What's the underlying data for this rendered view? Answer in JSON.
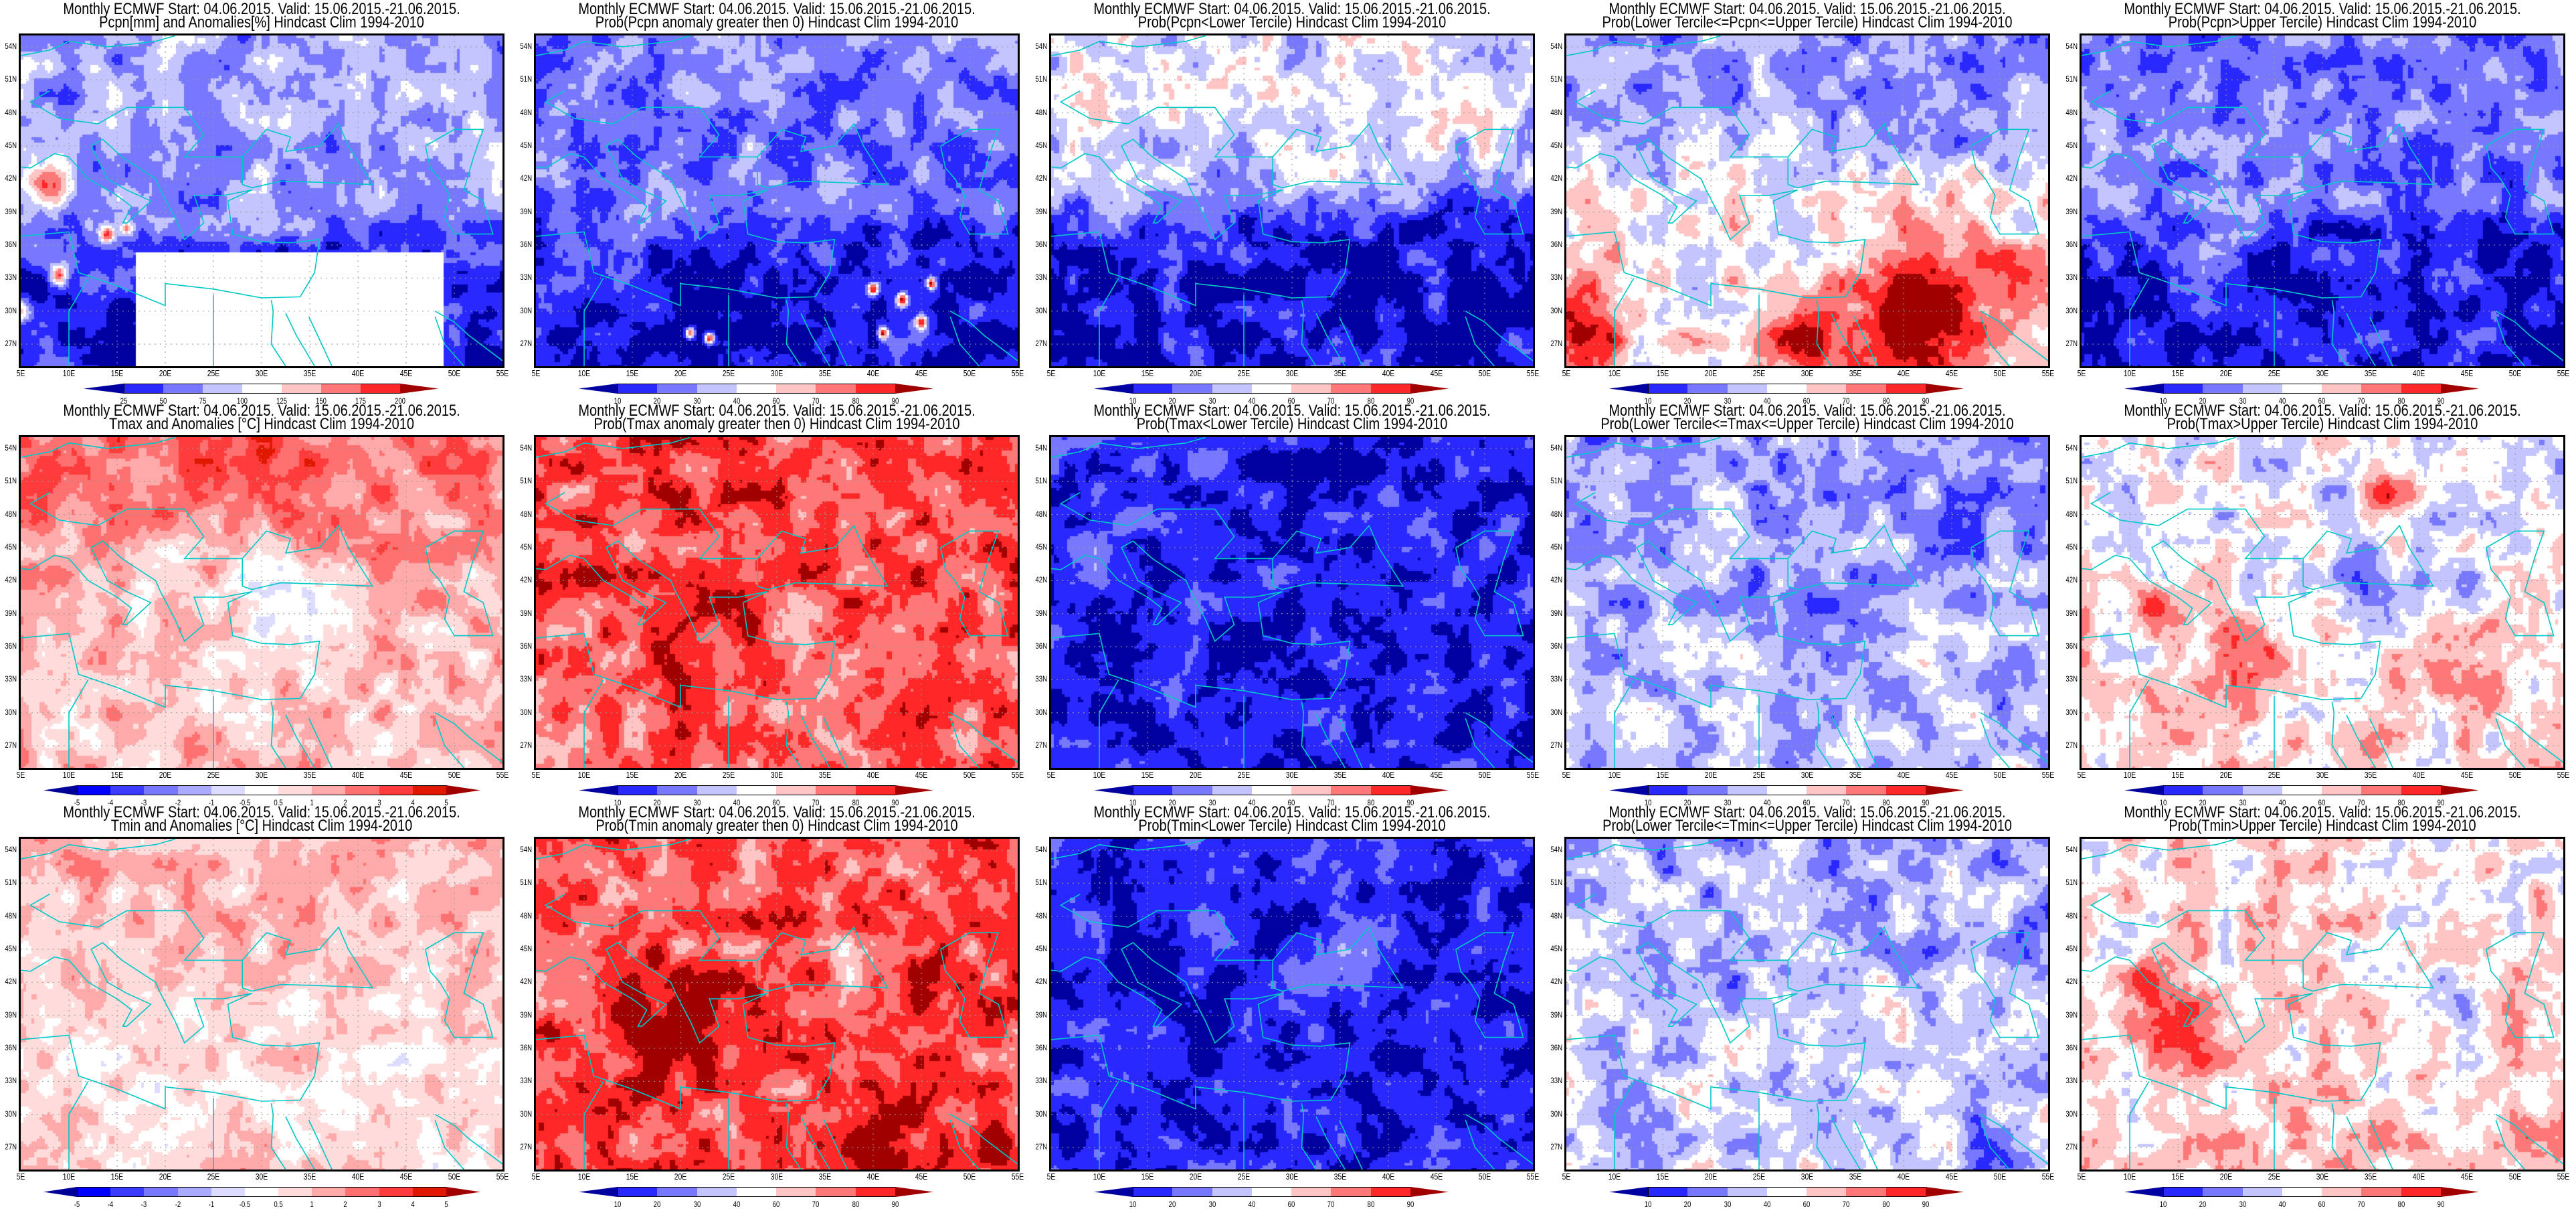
{
  "header_line": "Monthly ECMWF Start: 04.06.2015. Valid: 15.06.2015.-21.06.2015.",
  "axes": {
    "lon_labels": [
      "5E",
      "10E",
      "15E",
      "20E",
      "25E",
      "30E",
      "35E",
      "40E",
      "45E",
      "50E",
      "55E"
    ],
    "lat_labels": [
      "54N",
      "51N",
      "48N",
      "45N",
      "42N",
      "39N",
      "36N",
      "33N",
      "30N",
      "27N"
    ]
  },
  "colors": {
    "prob_scale": [
      "#0000a0",
      "#2828ff",
      "#7878ff",
      "#c4c4ff",
      "#ffffff",
      "#ffc4c4",
      "#ff7878",
      "#ff2828",
      "#a00000"
    ],
    "anomaly_scale": [
      "#000096",
      "#0000ff",
      "#3c3cff",
      "#7878ff",
      "#aaaaff",
      "#dcdcff",
      "#ffffff",
      "#ffdcdc",
      "#ffaaaa",
      "#ff7070",
      "#ff3c3c",
      "#e01800",
      "#a00000"
    ],
    "coastline": "#00c8c8"
  },
  "chart_data": [
    {
      "type": "heatmap",
      "title": "Pcpn[mm] and Anomalies[%] Hindcast Clim 1994-2010",
      "colorbar": [
        "25",
        "50",
        "75",
        "100",
        "125",
        "150",
        "175",
        "200"
      ]
    },
    {
      "type": "heatmap",
      "title": "Prob(Pcpn anomaly greater then 0) Hindcast Clim 1994-2010",
      "colorbar": [
        "10",
        "20",
        "30",
        "40",
        "60",
        "70",
        "80",
        "90"
      ]
    },
    {
      "type": "heatmap",
      "title": "Prob(Pcpn<Lower Tercile) Hindcast Clim 1994-2010",
      "colorbar": [
        "10",
        "20",
        "30",
        "40",
        "60",
        "70",
        "80",
        "90"
      ]
    },
    {
      "type": "heatmap",
      "title": "Prob(Lower Tercile<=Pcpn<=Upper Tercile) Hindcast Clim 1994-2010",
      "colorbar": [
        "10",
        "20",
        "30",
        "40",
        "60",
        "70",
        "80",
        "90"
      ]
    },
    {
      "type": "heatmap",
      "title": "Prob(Pcpn>Upper Tercile) Hindcast Clim 1994-2010",
      "colorbar": [
        "10",
        "20",
        "30",
        "40",
        "60",
        "70",
        "80",
        "90"
      ]
    },
    {
      "type": "heatmap",
      "title": "Tmax and Anomalies [°C] Hindcast Clim 1994-2010",
      "colorbar": [
        "-5",
        "-4",
        "-3",
        "-2",
        "-1",
        "-0.5",
        "0.5",
        "1",
        "2",
        "3",
        "4",
        "5"
      ]
    },
    {
      "type": "heatmap",
      "title": "Prob(Tmax anomaly greater then 0) Hindcast Clim 1994-2010",
      "colorbar": [
        "10",
        "20",
        "30",
        "40",
        "60",
        "70",
        "80",
        "90"
      ]
    },
    {
      "type": "heatmap",
      "title": "Prob(Tmax<Lower Tercile) Hindcast Clim 1994-2010",
      "colorbar": [
        "10",
        "20",
        "30",
        "40",
        "60",
        "70",
        "80",
        "90"
      ]
    },
    {
      "type": "heatmap",
      "title": "Prob(Lower Tercile<=Tmax<=Upper Tercile) Hindcast Clim 1994-2010",
      "colorbar": [
        "10",
        "20",
        "30",
        "40",
        "60",
        "70",
        "80",
        "90"
      ]
    },
    {
      "type": "heatmap",
      "title": "Prob(Tmax>Upper Tercile) Hindcast Clim 1994-2010",
      "colorbar": [
        "10",
        "20",
        "30",
        "40",
        "60",
        "70",
        "80",
        "90"
      ]
    },
    {
      "type": "heatmap",
      "title": "Tmin and Anomalies [°C] Hindcast Clim 1994-2010",
      "colorbar": [
        "-5",
        "-4",
        "-3",
        "-2",
        "-1",
        "-0.5",
        "0.5",
        "1",
        "2",
        "3",
        "4",
        "5"
      ]
    },
    {
      "type": "heatmap",
      "title": "Prob(Tmin anomaly greater then 0) Hindcast Clim 1994-2010",
      "colorbar": [
        "10",
        "20",
        "30",
        "40",
        "60",
        "70",
        "80",
        "90"
      ]
    },
    {
      "type": "heatmap",
      "title": "Prob(Tmin<Lower Tercile) Hindcast Clim 1994-2010",
      "colorbar": [
        "10",
        "20",
        "30",
        "40",
        "60",
        "70",
        "80",
        "90"
      ]
    },
    {
      "type": "heatmap",
      "title": "Prob(Lower Tercile<=Tmin<=Upper Tercile) Hindcast Clim 1994-2010",
      "colorbar": [
        "10",
        "20",
        "30",
        "40",
        "60",
        "70",
        "80",
        "90"
      ]
    },
    {
      "type": "heatmap",
      "title": "Prob(Tmin>Upper Tercile) Hindcast Clim 1994-2010",
      "colorbar": [
        "10",
        "20",
        "30",
        "40",
        "60",
        "70",
        "80",
        "90"
      ]
    }
  ]
}
